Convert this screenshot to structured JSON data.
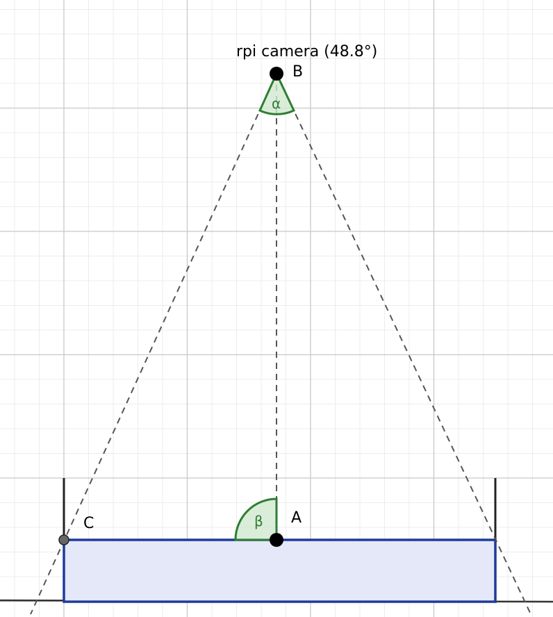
{
  "diagram": {
    "camera_label": "rpi camera (48.8°)",
    "points": {
      "A": "A",
      "B": "B",
      "C": "C"
    },
    "angles": {
      "alpha": "α",
      "beta": "β"
    },
    "colors": {
      "grid_minor": "#ececec",
      "grid_major": "#c8c8c8",
      "rays": "#555555",
      "angle_stroke": "#2e7d32",
      "angle_fill": "#cfe8cf",
      "rect_stroke": "#1f3a9b",
      "rect_fill": "#e4e8f8",
      "ground": "#333333",
      "point": "#000000",
      "point_c": "#666666"
    }
  }
}
